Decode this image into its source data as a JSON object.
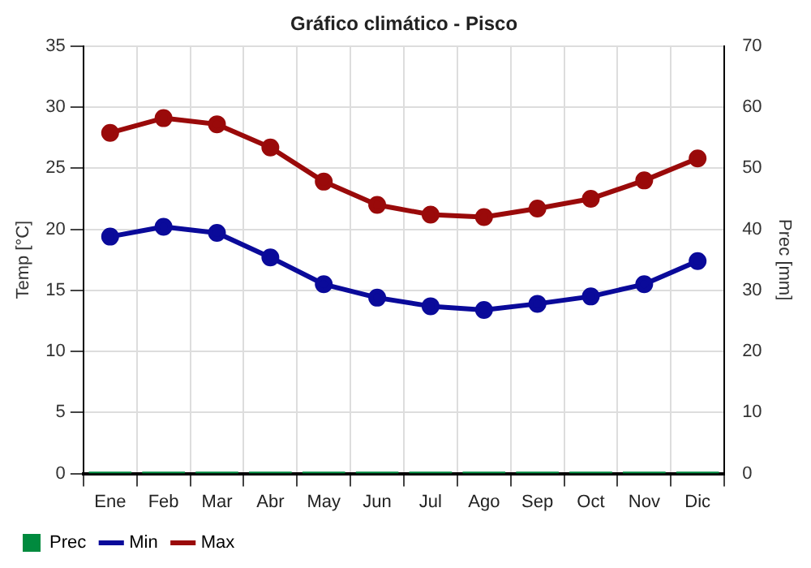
{
  "chart_data": {
    "type": "line",
    "title": "Gráfico climático - Pisco",
    "ylabel": "Temp [°C]",
    "y2label": "Prec [mm]",
    "categories": [
      "Ene",
      "Feb",
      "Mar",
      "Abr",
      "May",
      "Jun",
      "Jul",
      "Ago",
      "Sep",
      "Oct",
      "Nov",
      "Dic"
    ],
    "series": [
      {
        "name": "Prec",
        "type": "bar",
        "axis": "y2",
        "color": "#008a3e",
        "values": [
          0.3,
          0.3,
          0.3,
          0.3,
          0.3,
          0.3,
          0.3,
          0.3,
          0.3,
          0.3,
          0.3,
          0.3
        ]
      },
      {
        "name": "Min",
        "color": "#0a0a9a",
        "values": [
          19.4,
          20.2,
          19.7,
          17.7,
          15.5,
          14.4,
          13.7,
          13.4,
          13.9,
          14.5,
          15.5,
          17.4
        ]
      },
      {
        "name": "Max",
        "color": "#9a0a0a",
        "values": [
          27.9,
          29.1,
          28.6,
          26.7,
          23.9,
          22.0,
          21.2,
          21.0,
          21.7,
          22.5,
          24.0,
          25.8
        ]
      }
    ],
    "ylim": [
      0,
      35
    ],
    "yticks": [
      0,
      5,
      10,
      15,
      20,
      25,
      30,
      35
    ],
    "y2lim": [
      0,
      70
    ],
    "y2ticks": [
      0,
      10,
      20,
      30,
      40,
      50,
      60,
      70
    ],
    "grid": true,
    "legend": "bottom",
    "marker": "circle",
    "line_style": "solid"
  }
}
